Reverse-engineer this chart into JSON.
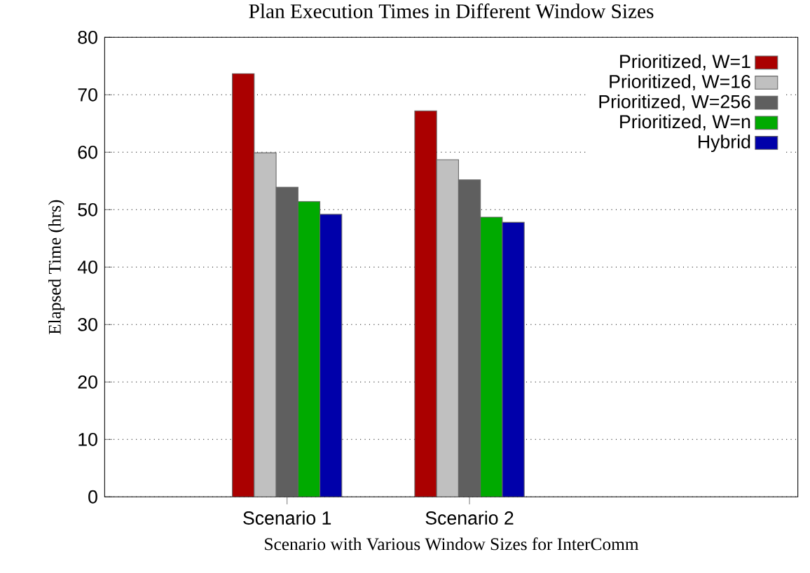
{
  "chart_data": {
    "type": "bar",
    "title": "Plan Execution Times in Different Window Sizes",
    "xlabel": "Scenario with Various Window Sizes for InterComm",
    "ylabel": "Elapsed Time (hrs)",
    "categories": [
      "Scenario 1",
      "Scenario 2"
    ],
    "series": [
      {
        "name": "Prioritized, W=1",
        "color": "#aa0000",
        "values": [
          73.7,
          67.2
        ]
      },
      {
        "name": "Prioritized, W=16",
        "color": "#c0c0c0",
        "values": [
          59.9,
          58.7
        ]
      },
      {
        "name": "Prioritized, W=256",
        "color": "#5f5f5f",
        "values": [
          53.9,
          55.2
        ]
      },
      {
        "name": "Prioritized, W=n",
        "color": "#00aa00",
        "values": [
          51.4,
          48.7
        ]
      },
      {
        "name": "Hybrid",
        "color": "#0000aa",
        "values": [
          49.2,
          47.8
        ]
      }
    ],
    "ylim": [
      0,
      80
    ],
    "yticks": [
      0,
      10,
      20,
      30,
      40,
      50,
      60,
      70,
      80
    ],
    "grid": "y",
    "legend": "top right"
  }
}
